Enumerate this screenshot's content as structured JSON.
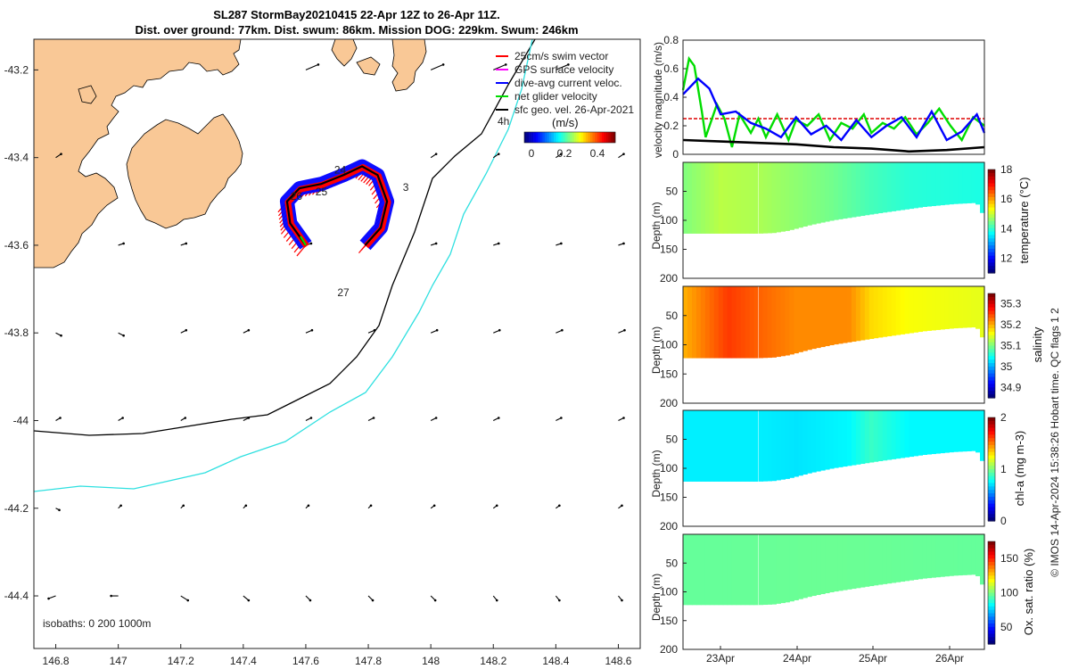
{
  "title": {
    "line1": "SL287 StormBay20210415 22-Apr 12Z to 26-Apr 11Z.",
    "line2": "Dist. over ground: 77km. Dist. swum: 86km. Mission DOG: 229km. Swum: 246km"
  },
  "copyright": "© IMOS 14-Apr-2024 15:38:26 Hobart time. QC flags 1  2",
  "colors": {
    "land": "#f9c896",
    "isobath_0": "#000000",
    "isobath_200": "#000000",
    "isobath_1000": "#2ee0e0",
    "swim_vector": "#ff0000",
    "gps_velocity": "#ff00ff",
    "dive_avg": "#0000ff",
    "net_glider": "#00dd00",
    "sfc_geo": "#000000",
    "ref_line": "#dd0000"
  },
  "chart_data": [
    {
      "type": "map",
      "xlabel": "",
      "ylabel": "",
      "xlim": [
        146.73,
        148.67
      ],
      "ylim": [
        -44.52,
        -43.13
      ],
      "xticks": [
        "146.8",
        "147",
        "147.2",
        "147.4",
        "147.6",
        "147.8",
        "148",
        "148.2",
        "148.4",
        "148.6"
      ],
      "yticks": [
        "-43.2",
        "-43.4",
        "-43.6",
        "-43.8",
        "-44",
        "-44.2",
        "-44.4"
      ],
      "legend": {
        "items": [
          "25cm/s swim vector",
          "GPS surface velocity",
          "dive-avg current veloc.",
          "net glider velocity",
          "sfc geo. vel. 26-Apr-2021"
        ],
        "time_label": "4h",
        "colorbar_title": "(m/s)",
        "colorbar_ticks": [
          "0",
          "0.2",
          "0.4"
        ]
      },
      "isobath_note": "isobaths: 0   200   1000m",
      "day_labels": [
        {
          "text": "24",
          "lon": 147.71,
          "lat": -43.43
        },
        {
          "text": "25",
          "lon": 147.65,
          "lat": -43.48
        },
        {
          "text": "26",
          "lon": 147.57,
          "lat": -43.49
        },
        {
          "text": "3",
          "lon": 147.92,
          "lat": -43.47
        },
        {
          "text": "27",
          "lon": 147.72,
          "lat": -43.71
        }
      ],
      "glider_track": [
        [
          147.6,
          -43.6
        ],
        [
          147.55,
          -43.55
        ],
        [
          147.54,
          -43.5
        ],
        [
          147.58,
          -43.47
        ],
        [
          147.65,
          -43.46
        ],
        [
          147.72,
          -43.44
        ],
        [
          147.78,
          -43.42
        ],
        [
          147.83,
          -43.44
        ],
        [
          147.86,
          -43.5
        ],
        [
          147.84,
          -43.56
        ],
        [
          147.79,
          -43.6
        ]
      ]
    },
    {
      "type": "line",
      "ylabel": "velocity magnitude (m/s)",
      "ylim": [
        0,
        0.8
      ],
      "yticks": [
        "0",
        "0.2",
        "0.4",
        "0.6",
        "0.8"
      ],
      "xlim": [
        0,
        4
      ],
      "xticklabels": [
        "23Apr",
        "24Apr",
        "25Apr",
        "26Apr"
      ],
      "series": [
        {
          "name": "swim vector reference",
          "x": [
            0,
            4
          ],
          "values": [
            0.25,
            0.25
          ]
        },
        {
          "name": "net glider velocity",
          "x": [
            0,
            0.08,
            0.15,
            0.25,
            0.3,
            0.45,
            0.55,
            0.65,
            0.75,
            0.9,
            1.0,
            1.1,
            1.25,
            1.4,
            1.5,
            1.65,
            1.8,
            1.95,
            2.1,
            2.25,
            2.4,
            2.5,
            2.65,
            2.8,
            2.95,
            3.1,
            3.25,
            3.4,
            3.55,
            3.7,
            3.85,
            4.0
          ],
          "values": [
            0.45,
            0.67,
            0.62,
            0.3,
            0.12,
            0.35,
            0.25,
            0.05,
            0.28,
            0.15,
            0.25,
            0.12,
            0.28,
            0.1,
            0.24,
            0.2,
            0.28,
            0.1,
            0.22,
            0.18,
            0.28,
            0.15,
            0.22,
            0.18,
            0.26,
            0.14,
            0.22,
            0.32,
            0.2,
            0.1,
            0.26,
            0.2
          ]
        },
        {
          "name": "dive-avg current veloc.",
          "x": [
            0,
            0.2,
            0.35,
            0.5,
            0.7,
            0.9,
            1.1,
            1.3,
            1.5,
            1.7,
            1.9,
            2.1,
            2.3,
            2.5,
            2.7,
            2.9,
            3.1,
            3.3,
            3.5,
            3.7,
            3.9,
            4.0
          ],
          "values": [
            0.42,
            0.53,
            0.46,
            0.28,
            0.3,
            0.22,
            0.18,
            0.12,
            0.26,
            0.14,
            0.2,
            0.1,
            0.24,
            0.12,
            0.2,
            0.26,
            0.12,
            0.3,
            0.1,
            0.16,
            0.28,
            0.15
          ]
        },
        {
          "name": "sfc geo. vel.",
          "x": [
            0,
            0.5,
            1.0,
            1.5,
            2.0,
            2.5,
            3.0,
            3.5,
            4.0
          ],
          "values": [
            0.1,
            0.09,
            0.08,
            0.07,
            0.05,
            0.04,
            0.02,
            0.03,
            0.05
          ]
        }
      ]
    },
    {
      "type": "heatmap",
      "ylabel": "Depth (m)",
      "clabel": "temperature (°C)",
      "ylim": [
        200,
        0
      ],
      "yticks": [
        "50",
        "100",
        "150",
        "200"
      ],
      "cticks": [
        "12",
        "14",
        "16",
        "18"
      ],
      "crange": [
        11,
        18
      ],
      "xticklabels": [
        "23Apr",
        "24Apr",
        "25Apr",
        "26Apr"
      ],
      "xlim": [
        0,
        4
      ],
      "max_depth": [
        [
          0,
          123
        ],
        [
          1.0,
          123
        ],
        [
          1.2,
          122
        ],
        [
          1.4,
          118
        ],
        [
          1.7,
          108
        ],
        [
          2.0,
          100
        ],
        [
          2.6,
          88
        ],
        [
          3.2,
          77
        ],
        [
          3.6,
          72
        ],
        [
          3.9,
          70
        ],
        [
          3.95,
          82
        ],
        [
          4.0,
          95
        ]
      ],
      "color_stops": [
        {
          "x": 0,
          "v": 14.5
        },
        {
          "x": 0.5,
          "v": 14.9
        },
        {
          "x": 1.0,
          "v": 14.8
        },
        {
          "x": 1.5,
          "v": 14.6
        },
        {
          "x": 2.0,
          "v": 14.4
        },
        {
          "x": 2.5,
          "v": 14.1
        },
        {
          "x": 3.0,
          "v": 13.9
        },
        {
          "x": 4.0,
          "v": 13.8
        }
      ]
    },
    {
      "type": "heatmap",
      "ylabel": "Depth (m)",
      "clabel": "salinity",
      "ylim": [
        200,
        0
      ],
      "yticks": [
        "50",
        "100",
        "150",
        "200"
      ],
      "cticks": [
        "34.9",
        "35",
        "35.1",
        "35.2",
        "35.3"
      ],
      "crange": [
        34.85,
        35.35
      ],
      "xticklabels": [
        "23Apr",
        "24Apr",
        "25Apr",
        "26Apr"
      ],
      "xlim": [
        0,
        4
      ],
      "max_depth": [
        [
          0,
          123
        ],
        [
          1.0,
          123
        ],
        [
          1.2,
          122
        ],
        [
          1.4,
          118
        ],
        [
          1.7,
          108
        ],
        [
          2.0,
          100
        ],
        [
          2.6,
          88
        ],
        [
          3.2,
          77
        ],
        [
          3.6,
          72
        ],
        [
          3.9,
          70
        ],
        [
          3.95,
          82
        ],
        [
          4.0,
          95
        ]
      ],
      "color_stops": [
        {
          "x": 0,
          "v": 35.2
        },
        {
          "x": 0.3,
          "v": 35.23
        },
        {
          "x": 0.6,
          "v": 35.26
        },
        {
          "x": 1.0,
          "v": 35.24
        },
        {
          "x": 1.5,
          "v": 35.22
        },
        {
          "x": 2.2,
          "v": 35.22
        },
        {
          "x": 2.5,
          "v": 35.18
        },
        {
          "x": 3.0,
          "v": 35.16
        },
        {
          "x": 4.0,
          "v": 35.15
        }
      ]
    },
    {
      "type": "heatmap",
      "ylabel": "Depth (m)",
      "clabel": "chl-a (mg m-3)",
      "ylim": [
        200,
        0
      ],
      "yticks": [
        "50",
        "100",
        "150",
        "200"
      ],
      "cticks": [
        "0",
        "1",
        "2"
      ],
      "crange": [
        0,
        2
      ],
      "xticklabels": [
        "23Apr",
        "24Apr",
        "25Apr",
        "26Apr"
      ],
      "xlim": [
        0,
        4
      ],
      "max_depth": [
        [
          0,
          123
        ],
        [
          1.0,
          123
        ],
        [
          1.2,
          122
        ],
        [
          1.4,
          118
        ],
        [
          1.7,
          108
        ],
        [
          2.0,
          100
        ],
        [
          2.6,
          88
        ],
        [
          3.2,
          77
        ],
        [
          3.6,
          72
        ],
        [
          3.9,
          70
        ],
        [
          3.95,
          82
        ],
        [
          4.0,
          95
        ]
      ],
      "color_stops": [
        {
          "x": 0,
          "v": 0.72
        },
        {
          "x": 1.0,
          "v": 0.72
        },
        {
          "x": 1.5,
          "v": 0.7
        },
        {
          "x": 2.2,
          "v": 0.74
        },
        {
          "x": 2.5,
          "v": 0.86
        },
        {
          "x": 3.0,
          "v": 0.74
        },
        {
          "x": 4.0,
          "v": 0.74
        }
      ]
    },
    {
      "type": "heatmap",
      "ylabel": "Depth (m)",
      "clabel": "Ox. sat. ratio (%)",
      "ylim": [
        200,
        0
      ],
      "yticks": [
        "50",
        "100",
        "150",
        "200"
      ],
      "cticks": [
        "50",
        "100",
        "150"
      ],
      "crange": [
        25,
        175
      ],
      "xticklabels": [
        "23Apr",
        "24Apr",
        "25Apr",
        "26Apr"
      ],
      "xlim": [
        0,
        4
      ],
      "max_depth": [
        [
          0,
          123
        ],
        [
          1.0,
          123
        ],
        [
          1.2,
          122
        ],
        [
          1.4,
          118
        ],
        [
          1.7,
          108
        ],
        [
          2.0,
          100
        ],
        [
          2.6,
          88
        ],
        [
          3.2,
          77
        ],
        [
          3.6,
          72
        ],
        [
          3.9,
          70
        ],
        [
          3.95,
          82
        ],
        [
          4.0,
          95
        ]
      ],
      "color_stops": [
        {
          "x": 0,
          "v": 96
        },
        {
          "x": 2.0,
          "v": 97
        },
        {
          "x": 4.0,
          "v": 96
        }
      ]
    }
  ]
}
